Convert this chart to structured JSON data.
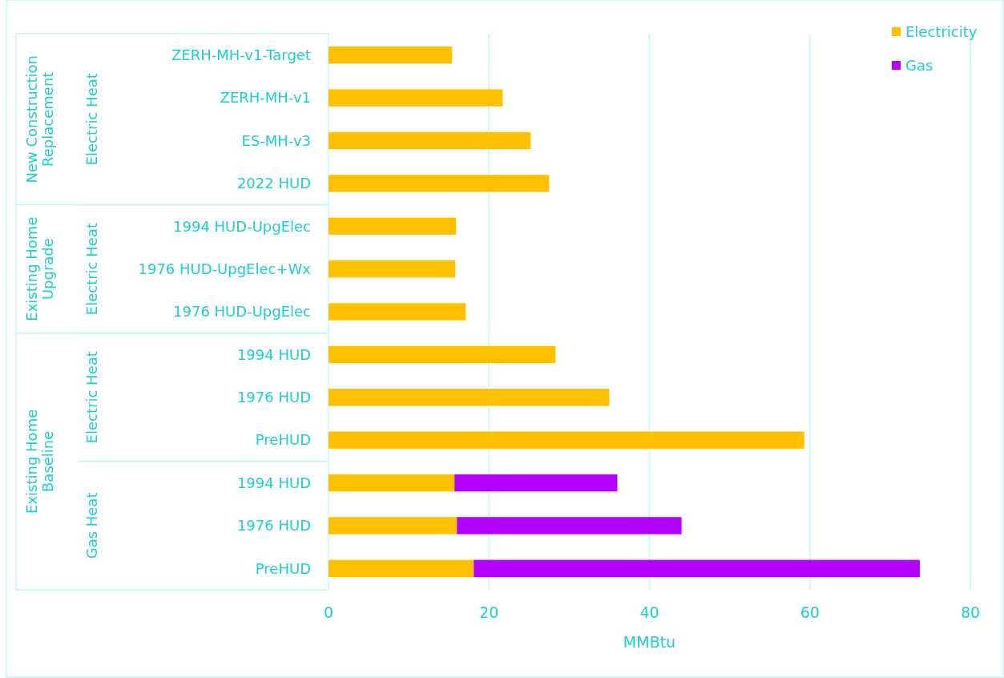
{
  "chart_data": {
    "type": "bar",
    "orientation": "horizontal",
    "stacked": true,
    "categories": [
      "ZERH-MH-v1-Target",
      "ZERH-MH-v1",
      "ES-MH-v3",
      "2022 HUD",
      "1994 HUD-UpgElec",
      "1976 HUD-UpgElec+Wx",
      "1976 HUD-UpgElec",
      "1994 HUD",
      "1976 HUD",
      "PreHUD",
      "1994 HUD",
      "1976 HUD",
      "PreHUD"
    ],
    "series": [
      {
        "name": "Electricity",
        "color": "#ffc000",
        "values": [
          15.4,
          21.7,
          25.2,
          27.5,
          15.9,
          15.8,
          17.1,
          28.3,
          35.0,
          59.3,
          15.7,
          16.0,
          18.1
        ]
      },
      {
        "name": "Gas",
        "color": "#b300ff",
        "values": [
          null,
          null,
          null,
          null,
          null,
          null,
          null,
          null,
          null,
          null,
          20.3,
          28.0,
          55.6
        ]
      }
    ],
    "xlabel": "MMBtu",
    "xlim": [
      0,
      80
    ],
    "xticks": [
      0,
      20,
      40,
      60,
      80
    ],
    "grid": "x",
    "legend": "top right",
    "annotations": [
      "New Construction Replacement",
      "Existing Home Upgrade",
      "Existing Home Baseline",
      "Electric Heat",
      "Electric Heat",
      "Electric Heat",
      "Gas Heat"
    ]
  }
}
